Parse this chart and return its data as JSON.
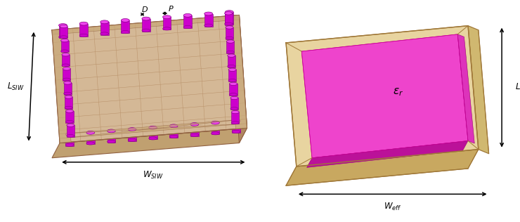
{
  "fig_width": 7.4,
  "fig_height": 3.16,
  "dpi": 100,
  "bg_color": "#ffffff",
  "siw_substrate_color": "#d4b896",
  "siw_substrate_side_color": "#c0a070",
  "siw_border_color": "#906040",
  "siw_grid_color": "#b89068",
  "siw_via_body_color": "#cc00cc",
  "siw_via_top_color": "#ee44ee",
  "siw_via_edge_color": "#880088",
  "siw_transparent_color": "#d8c0d8",
  "rect_frame_top_color": "#e8d4a0",
  "rect_frame_side_color": "#d0b870",
  "rect_frame_front_color": "#c8a860",
  "rect_inner_color": "#ee44cc",
  "rect_inner_side_color": "#cc22aa",
  "rect_inner_front_color": "#bb1199",
  "rect_frame_edge_color": "#a07838",
  "label_color": "#000000"
}
